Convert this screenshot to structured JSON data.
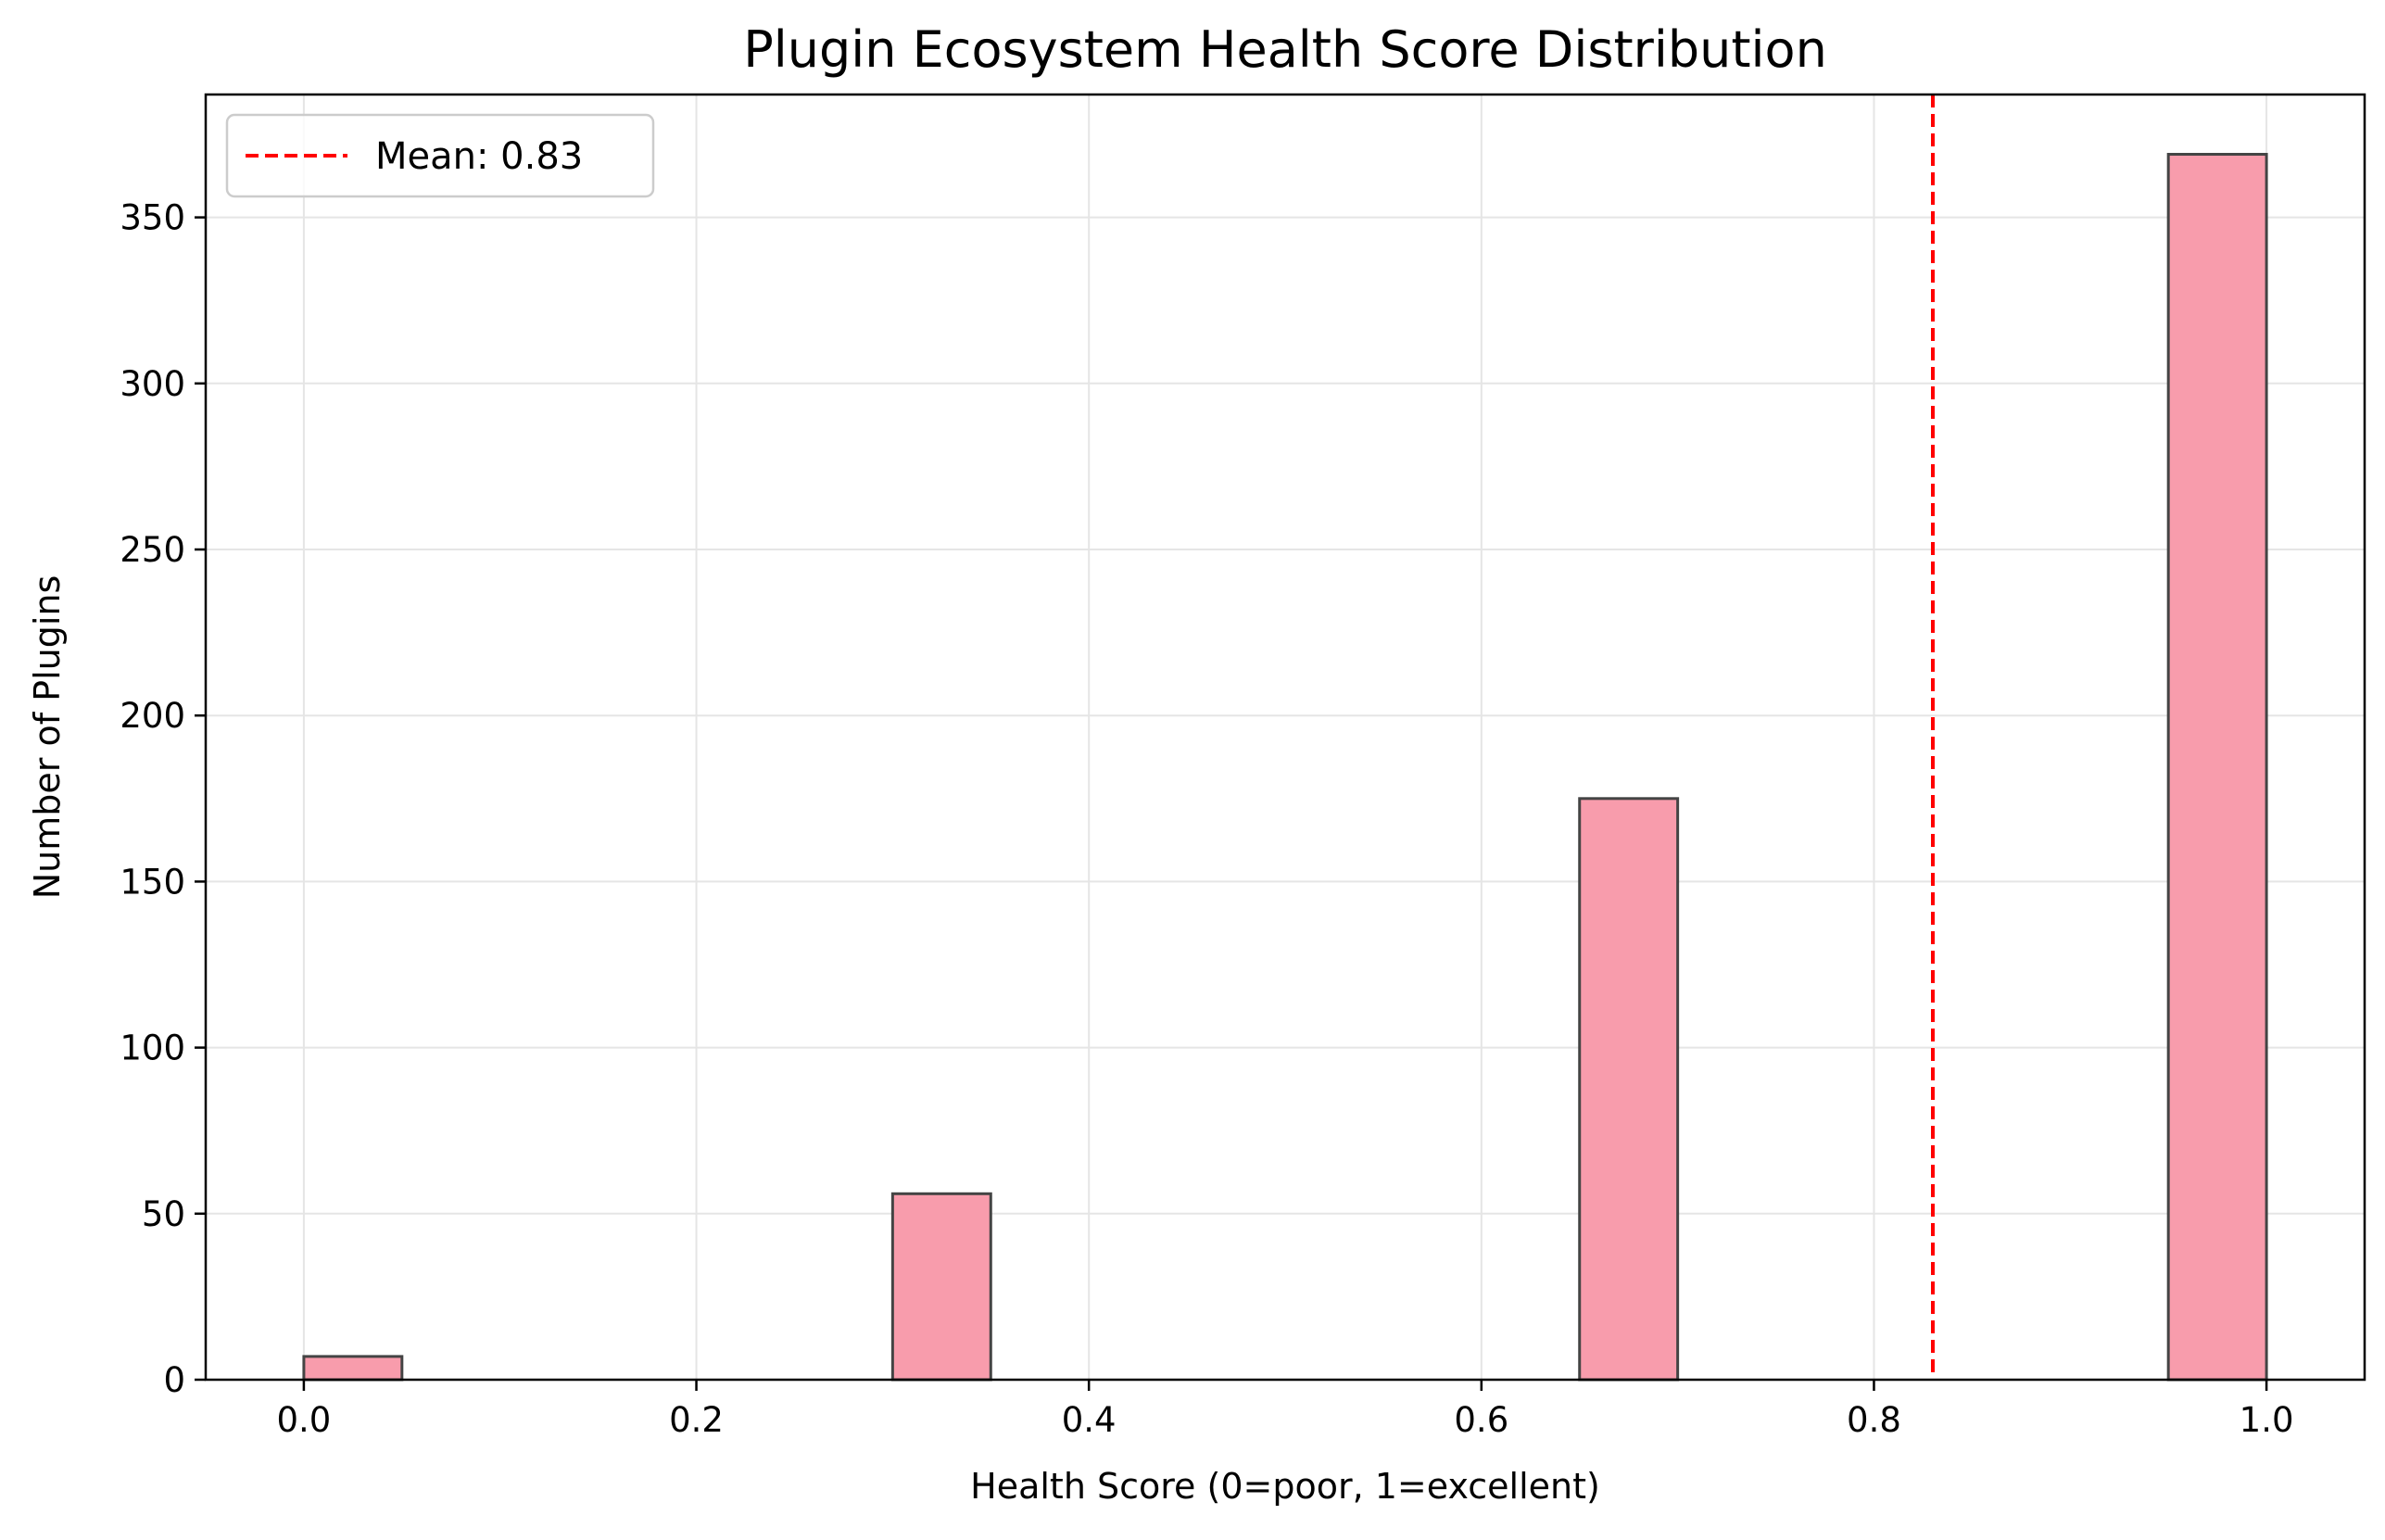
{
  "chart_data": {
    "type": "bar",
    "title": "Plugin Ecosystem Health Score Distribution",
    "xlabel": "Health Score (0=poor, 1=excellent)",
    "ylabel": "Number of Plugins",
    "xlim": [
      -0.05,
      1.05
    ],
    "ylim": [
      0,
      387
    ],
    "xticks": [
      0.0,
      0.2,
      0.4,
      0.6,
      0.8,
      1.0
    ],
    "xtick_labels": [
      "0.0",
      "0.2",
      "0.4",
      "0.6",
      "0.8",
      "1.0"
    ],
    "yticks": [
      0,
      50,
      100,
      150,
      200,
      250,
      300,
      350
    ],
    "ytick_labels": [
      "0",
      "50",
      "100",
      "150",
      "200",
      "250",
      "300",
      "350"
    ],
    "grid": true,
    "bin_width": 0.05,
    "bins": [
      {
        "x_start": 0.0,
        "x_end": 0.05,
        "count": 7
      },
      {
        "x_start": 0.3,
        "x_end": 0.35,
        "count": 56
      },
      {
        "x_start": 0.65,
        "x_end": 0.7,
        "count": 175
      },
      {
        "x_start": 0.95,
        "x_end": 1.0,
        "count": 369
      }
    ],
    "mean_line": {
      "x": 0.83,
      "label": "Mean: 0.83",
      "color": "#ff0000",
      "style": "dashed"
    },
    "legend": {
      "placement": "top-left"
    },
    "colors": {
      "bar_fill": "#f89cac",
      "bar_edge": "#444444",
      "grid": "#e5e5e5"
    }
  }
}
